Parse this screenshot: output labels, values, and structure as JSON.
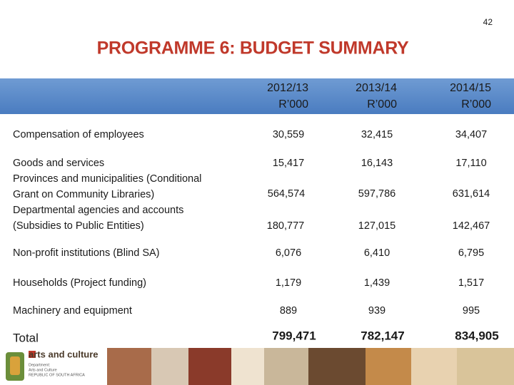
{
  "page_number": "42",
  "title": "PROGRAMME 6: BUDGET SUMMARY",
  "table": {
    "columns": [
      [
        "2012/13",
        "R’000"
      ],
      [
        "2013/14",
        "R’000"
      ],
      [
        "2014/15",
        "R’000"
      ]
    ],
    "rows": [
      {
        "label": [
          "Compensation of employees"
        ],
        "values": [
          "30,559",
          "32,415",
          "34,407"
        ]
      },
      {
        "label": [
          "Goods and services"
        ],
        "values": [
          "15,417",
          "16,143",
          "17,110"
        ]
      },
      {
        "label": [
          "Provinces and municipalities (Conditional",
          "Grant on Community Libraries)"
        ],
        "values": [
          "564,574",
          "597,786",
          "631,614"
        ]
      },
      {
        "label": [
          "Departmental agencies and accounts",
          "(Subsidies to Public Entities)"
        ],
        "values": [
          "180,777",
          "127,015",
          "142,467"
        ]
      },
      {
        "label": [
          "Non-profit institutions (Blind SA)"
        ],
        "values": [
          "6,076",
          "6,410",
          "6,795"
        ]
      },
      {
        "label": [
          "Households (Project  funding)"
        ],
        "values": [
          "1,179",
          "1,439",
          "1,517"
        ]
      },
      {
        "label": [
          "Machinery and equipment"
        ],
        "values": [
          "889",
          "939",
          "995"
        ]
      },
      {
        "label": [
          "Total"
        ],
        "values": [
          "799,471",
          "782,147",
          "834,905"
        ]
      }
    ]
  },
  "footer": {
    "logo": "arts and culture",
    "department": [
      "Department:",
      "Arts and Culture",
      "REPUBLIC OF SOUTH AFRICA"
    ]
  }
}
